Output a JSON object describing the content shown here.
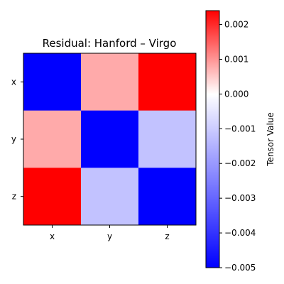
{
  "chart_data": {
    "type": "heatmap",
    "title": "Residual: Hanford – Virgo",
    "x_categories": [
      "x",
      "y",
      "z"
    ],
    "y_categories": [
      "x",
      "y",
      "z"
    ],
    "values": [
      [
        -0.005,
        0.0008,
        0.0024
      ],
      [
        0.0008,
        -0.005,
        -0.0012
      ],
      [
        0.0024,
        -0.0012,
        -0.005
      ]
    ],
    "colormap": "bwr",
    "colorbar": {
      "label": "Tensor Value",
      "vmin": -0.005,
      "vmax": 0.0024,
      "ticks": [
        0.002,
        0.001,
        0.0,
        -0.001,
        -0.002,
        -0.003,
        -0.004,
        -0.005
      ],
      "tick_labels": [
        "0.002",
        "0.001",
        "0.000",
        "−0.001",
        "−0.002",
        "−0.003",
        "−0.004",
        "−0.005"
      ]
    },
    "colors": {
      "blue": "#0000ff",
      "white": "#ffffff",
      "red": "#ff0000"
    }
  }
}
